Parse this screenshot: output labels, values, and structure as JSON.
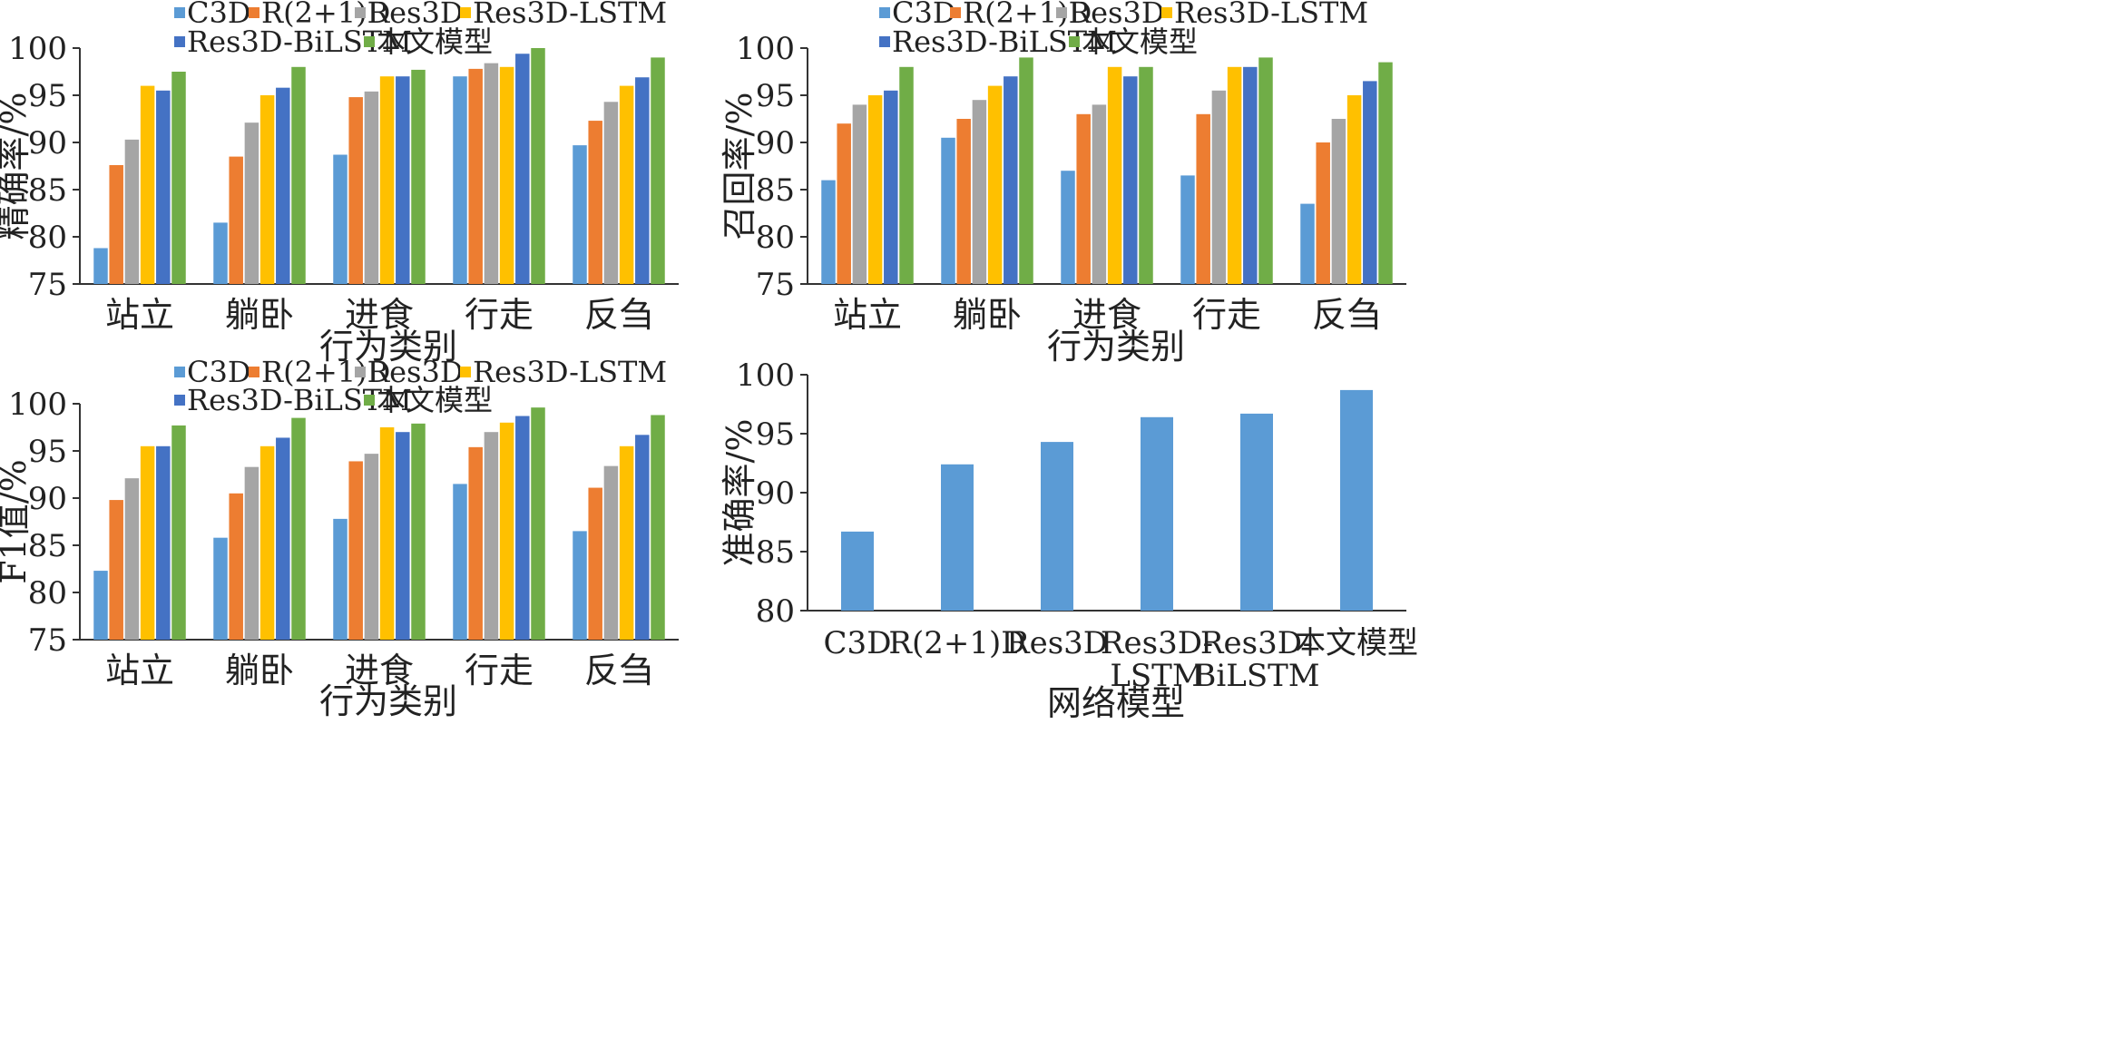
{
  "chart_data": [
    {
      "type": "bar",
      "categories": [
        "站立",
        "躺卧",
        "进食",
        "行走",
        "反刍"
      ],
      "xlabel": "行为类别",
      "ylabel": "精确率/%",
      "ylim": [
        75,
        100
      ],
      "yticks": [
        75,
        80,
        85,
        90,
        95,
        100
      ],
      "legend": "top",
      "grid": false,
      "series": [
        {
          "name": "C3D",
          "color": "#5b9bd5",
          "values": [
            78.8,
            81.5,
            88.7,
            97.0,
            89.7
          ]
        },
        {
          "name": "R(2+1)D",
          "color": "#ed7d31",
          "values": [
            87.6,
            88.5,
            94.8,
            97.8,
            92.3
          ]
        },
        {
          "name": "Res3D",
          "color": "#a5a5a5",
          "values": [
            90.3,
            92.1,
            95.4,
            98.4,
            94.3
          ]
        },
        {
          "name": "Res3D-LSTM",
          "color": "#ffc000",
          "values": [
            96.0,
            95.0,
            97.0,
            98.0,
            96.0
          ]
        },
        {
          "name": "Res3D-BiLSTM",
          "color": "#4472c4",
          "values": [
            95.5,
            95.8,
            97.0,
            99.4,
            96.9
          ]
        },
        {
          "name": "本文模型",
          "color": "#70ad47",
          "values": [
            97.5,
            98.0,
            97.7,
            100.0,
            99.0
          ]
        }
      ]
    },
    {
      "type": "bar",
      "categories": [
        "站立",
        "躺卧",
        "进食",
        "行走",
        "反刍"
      ],
      "xlabel": "行为类别",
      "ylabel": "召回率/%",
      "ylim": [
        75,
        100
      ],
      "yticks": [
        75,
        80,
        85,
        90,
        95,
        100
      ],
      "legend": "top",
      "grid": false,
      "series": [
        {
          "name": "C3D",
          "color": "#5b9bd5",
          "values": [
            86.0,
            90.5,
            87.0,
            86.5,
            83.5
          ]
        },
        {
          "name": "R(2+1)D",
          "color": "#ed7d31",
          "values": [
            92.0,
            92.5,
            93.0,
            93.0,
            90.0
          ]
        },
        {
          "name": "Res3D",
          "color": "#a5a5a5",
          "values": [
            94.0,
            94.5,
            94.0,
            95.5,
            92.5
          ]
        },
        {
          "name": "Res3D-LSTM",
          "color": "#ffc000",
          "values": [
            95.0,
            96.0,
            98.0,
            98.0,
            95.0
          ]
        },
        {
          "name": "Res3D-BiLSTM",
          "color": "#4472c4",
          "values": [
            95.5,
            97.0,
            97.0,
            98.0,
            96.5
          ]
        },
        {
          "name": "本文模型",
          "color": "#70ad47",
          "values": [
            98.0,
            99.0,
            98.0,
            99.0,
            98.5
          ]
        }
      ]
    },
    {
      "type": "bar",
      "categories": [
        "站立",
        "躺卧",
        "进食",
        "行走",
        "反刍"
      ],
      "xlabel": "行为类别",
      "ylabel": "F1值/%",
      "ylim": [
        75,
        100
      ],
      "yticks": [
        75,
        80,
        85,
        90,
        95,
        100
      ],
      "legend": "top",
      "grid": false,
      "series": [
        {
          "name": "C3D",
          "color": "#5b9bd5",
          "values": [
            82.3,
            85.8,
            87.8,
            91.5,
            86.5
          ]
        },
        {
          "name": "R(2+1)D",
          "color": "#ed7d31",
          "values": [
            89.8,
            90.5,
            93.9,
            95.4,
            91.1
          ]
        },
        {
          "name": "Res3D",
          "color": "#a5a5a5",
          "values": [
            92.1,
            93.3,
            94.7,
            97.0,
            93.4
          ]
        },
        {
          "name": "Res3D-LSTM",
          "color": "#ffc000",
          "values": [
            95.5,
            95.5,
            97.5,
            98.0,
            95.5
          ]
        },
        {
          "name": "Res3D-BiLSTM",
          "color": "#4472c4",
          "values": [
            95.5,
            96.4,
            97.0,
            98.7,
            96.7
          ]
        },
        {
          "name": "本文模型",
          "color": "#70ad47",
          "values": [
            97.7,
            98.5,
            97.9,
            99.6,
            98.8
          ]
        }
      ]
    },
    {
      "type": "bar",
      "categories": [
        "C3D",
        "R(2+1)D",
        "Res3D",
        "Res3D-LSTM",
        "Res3D-BiLSTM",
        "本文模型"
      ],
      "category_lines": [
        [
          "C3D"
        ],
        [
          "R(2+1)D"
        ],
        [
          "Res3D"
        ],
        [
          "Res3D-",
          "LSTM"
        ],
        [
          "Res3D-",
          "BiLSTM"
        ],
        [
          "本文模型"
        ]
      ],
      "xlabel": "网络模型",
      "ylabel": "准确率/%",
      "ylim": [
        80,
        100
      ],
      "yticks": [
        80,
        85,
        90,
        95,
        100
      ],
      "grid": false,
      "color": "#5b9bd5",
      "values": [
        86.7,
        92.4,
        94.3,
        96.4,
        96.7,
        98.7
      ]
    }
  ]
}
